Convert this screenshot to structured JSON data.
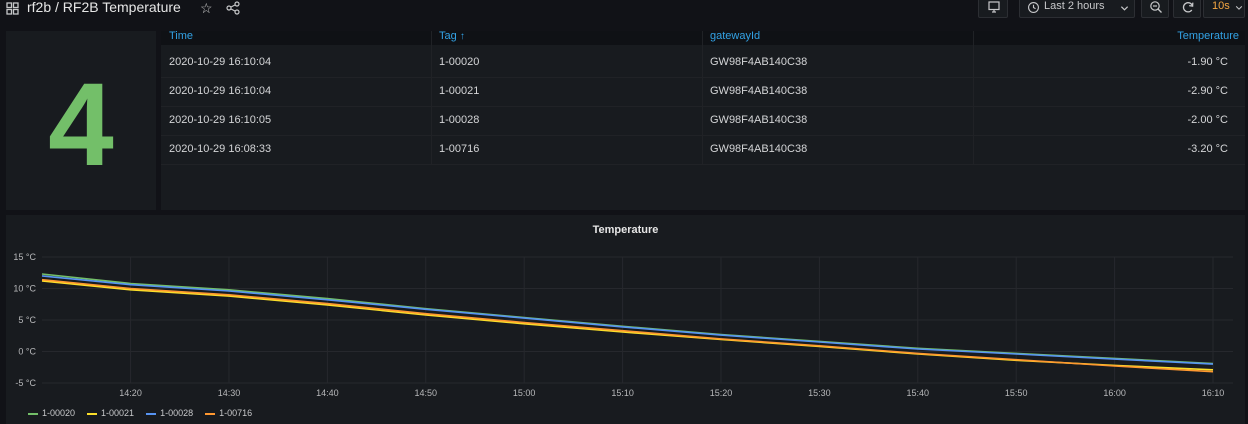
{
  "header": {
    "title": "rf2b / RF2B Temperature",
    "time_range": "Last 2 hours",
    "refresh": "10s"
  },
  "stat": {
    "value": "4",
    "color": "#73bf69"
  },
  "table": {
    "columns": [
      "Time",
      "Tag",
      "gatewayId",
      "Temperature"
    ],
    "rows": [
      [
        "2020-10-29 16:10:04",
        "1-00020",
        "GW98F4AB140C38",
        "-1.90 °C"
      ],
      [
        "2020-10-29 16:10:04",
        "1-00021",
        "GW98F4AB140C38",
        "-2.90 °C"
      ],
      [
        "2020-10-29 16:10:05",
        "1-00028",
        "GW98F4AB140C38",
        "-2.00 °C"
      ],
      [
        "2020-10-29 16:08:33",
        "1-00716",
        "GW98F4AB140C38",
        "-3.20 °C"
      ]
    ],
    "header_color": "#33a2e5"
  },
  "chart_data": {
    "type": "line",
    "title": "Temperature",
    "xlabel": "",
    "ylabel": "",
    "x_ticks": [
      "14:20",
      "14:30",
      "14:40",
      "14:50",
      "15:00",
      "15:10",
      "15:20",
      "15:30",
      "15:40",
      "15:50",
      "16:00",
      "16:10"
    ],
    "y_ticks": [
      "15 °C",
      "10 °C",
      "5 °C",
      "0 °C",
      "-5 °C"
    ],
    "ylim": [
      -5,
      15
    ],
    "xlim": [
      "14:11",
      "16:10"
    ],
    "grid": true,
    "legend_position": "bottom-left",
    "series": [
      {
        "name": "1-00020",
        "color": "#73bf69",
        "x": [
          "14:11",
          "14:20",
          "14:30",
          "14:40",
          "14:50",
          "15:00",
          "15:10",
          "15:20",
          "15:30",
          "15:40",
          "15:50",
          "16:00",
          "16:10"
        ],
        "values": [
          12.3,
          10.8,
          9.8,
          8.4,
          6.8,
          5.4,
          4.0,
          2.7,
          1.6,
          0.5,
          -0.3,
          -1.1,
          -1.9
        ]
      },
      {
        "name": "1-00021",
        "color": "#fade2a",
        "x": [
          "14:11",
          "14:20",
          "14:30",
          "14:40",
          "14:50",
          "15:00",
          "15:10",
          "15:20",
          "15:30",
          "15:40",
          "15:50",
          "16:00",
          "16:10"
        ],
        "values": [
          11.2,
          9.8,
          8.8,
          7.4,
          5.8,
          4.4,
          3.1,
          1.9,
          0.8,
          -0.4,
          -1.4,
          -2.2,
          -2.9
        ]
      },
      {
        "name": "1-00028",
        "color": "#5794f2",
        "x": [
          "14:11",
          "14:20",
          "14:30",
          "14:40",
          "14:50",
          "15:00",
          "15:10",
          "15:20",
          "15:30",
          "15:40",
          "15:50",
          "16:00",
          "16:10"
        ],
        "values": [
          12.0,
          10.6,
          9.6,
          8.2,
          6.7,
          5.3,
          3.9,
          2.6,
          1.5,
          0.4,
          -0.4,
          -1.2,
          -2.0
        ]
      },
      {
        "name": "1-00716",
        "color": "#ff9830",
        "x": [
          "14:11",
          "14:20",
          "14:30",
          "14:40",
          "14:50",
          "15:00",
          "15:10",
          "15:20",
          "15:30",
          "15:40",
          "15:50",
          "16:00",
          "16:10"
        ],
        "values": [
          11.4,
          10.0,
          9.0,
          7.6,
          6.0,
          4.6,
          3.3,
          2.0,
          0.9,
          -0.3,
          -1.3,
          -2.3,
          -3.2
        ]
      }
    ]
  },
  "icons": {
    "dashboard": "grid-icon",
    "star": "star-icon",
    "share": "share-icon",
    "tv": "tv-mode-icon",
    "clock": "clock-icon",
    "chevron": "chevron-down-icon",
    "zoom_out": "zoom-out-icon",
    "refresh": "refresh-icon"
  }
}
